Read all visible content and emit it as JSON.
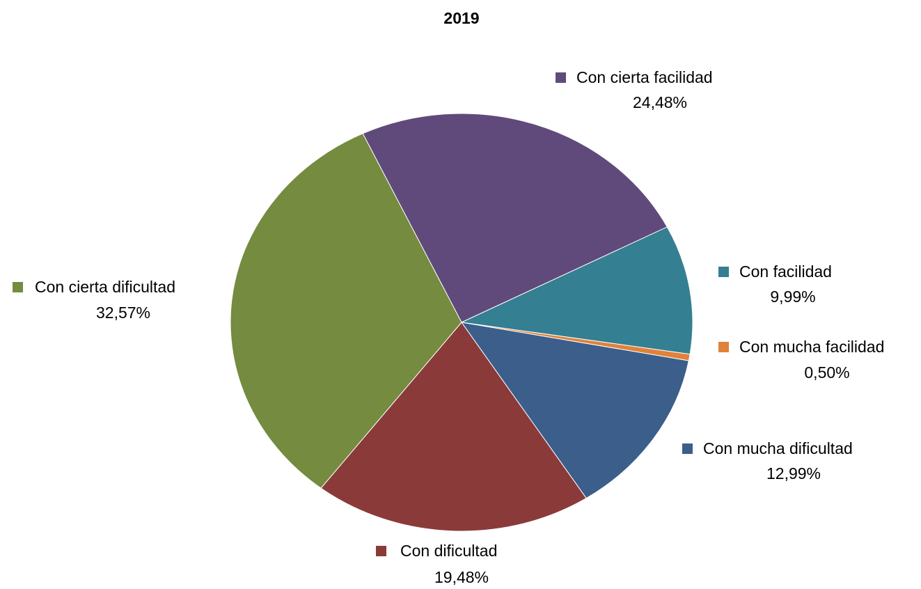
{
  "chart_data": {
    "type": "pie",
    "title": "2019",
    "categories": [
      "Con cierta facilidad",
      "Con facilidad",
      "Con mucha facilidad",
      "Con mucha dificultad",
      "Con dificultad",
      "Con cierta dificultad"
    ],
    "values": [
      24.48,
      9.99,
      0.5,
      12.99,
      19.48,
      32.57
    ],
    "value_labels": [
      "24,48%",
      "9,99%",
      "0,50%",
      "12,99%",
      "19,48%",
      "32,57%"
    ],
    "colors": [
      "#604a7b",
      "#357f92",
      "#e0823a",
      "#3b5e8b",
      "#8b3a3a",
      "#748b40"
    ]
  }
}
